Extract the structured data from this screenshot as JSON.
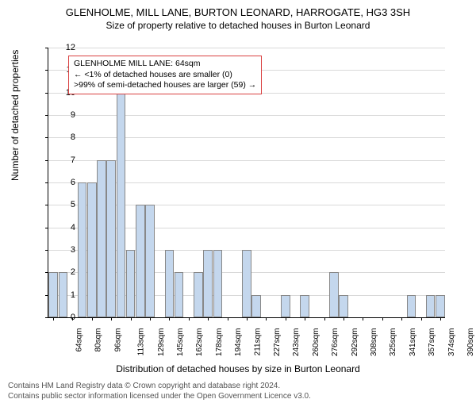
{
  "title_line1": "GLENHOLME, MILL LANE, BURTON LEONARD, HARROGATE, HG3 3SH",
  "title_line2": "Size of property relative to detached houses in Burton Leonard",
  "ylabel": "Number of detached properties",
  "xlabel": "Distribution of detached houses by size in Burton Leonard",
  "chart": {
    "type": "bar",
    "ylim": [
      0,
      12
    ],
    "ytick_step": 1,
    "bar_color": "#c4d7ed",
    "bar_border": "#888888",
    "grid_color": "#d9d9d9",
    "background_color": "#ffffff",
    "annotation_border": "#d94040",
    "categories": [
      "64sqm",
      "",
      "80sqm",
      "",
      "96sqm",
      "",
      "113sqm",
      "",
      "129sqm",
      "",
      "145sqm",
      "",
      "162sqm",
      "",
      "178sqm",
      "",
      "194sqm",
      "",
      "211sqm",
      "",
      "227sqm",
      "",
      "243sqm",
      "",
      "260sqm",
      "",
      "276sqm",
      "",
      "292sqm",
      "",
      "308sqm",
      "",
      "325sqm",
      "",
      "341sqm",
      "",
      "357sqm",
      "",
      "374sqm",
      "",
      "390sqm"
    ],
    "values": [
      2,
      2,
      0,
      6,
      6,
      7,
      7,
      10,
      3,
      5,
      5,
      0,
      3,
      2,
      0,
      2,
      3,
      3,
      0,
      0,
      3,
      1,
      0,
      0,
      1,
      0,
      1,
      0,
      0,
      2,
      1,
      0,
      0,
      0,
      0,
      0,
      0,
      1,
      0,
      1,
      1
    ]
  },
  "annotation": {
    "line1": "GLENHOLME MILL LANE: 64sqm",
    "line2": "← <1% of detached houses are smaller (0)",
    "line3": ">99% of semi-detached houses are larger (59) →"
  },
  "footer_line1": "Contains HM Land Registry data © Crown copyright and database right 2024.",
  "footer_line2": "Contains public sector information licensed under the Open Government Licence v3.0."
}
